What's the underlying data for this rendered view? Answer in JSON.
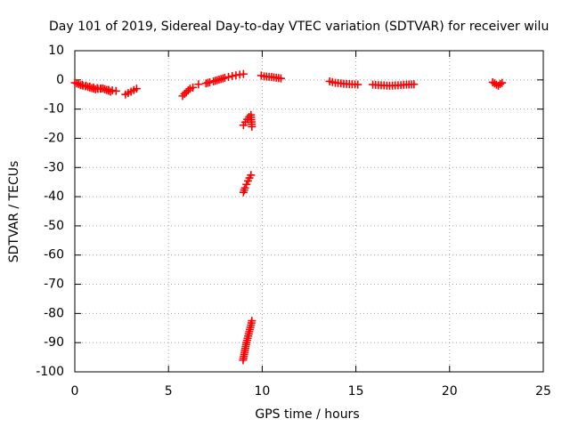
{
  "chart_data": {
    "type": "scatter",
    "title": "Day 101 of 2019, Sidereal Day-to-day VTEC variation (SDTVAR) for receiver wilu",
    "xlabel": "GPS time / hours",
    "ylabel": "SDTVAR / TECUs",
    "xlim": [
      0,
      25
    ],
    "ylim": [
      -100,
      10
    ],
    "x_ticks": [
      0,
      5,
      10,
      15,
      20,
      25
    ],
    "y_ticks": [
      10,
      0,
      -10,
      -20,
      -30,
      -40,
      -50,
      -60,
      -70,
      -80,
      -90,
      -100
    ],
    "grid": true,
    "marker": "+",
    "marker_color": "#ff0000",
    "segments": [
      {
        "x": [
          0.0,
          0.2,
          0.4,
          0.6,
          0.8,
          1.0,
          1.2,
          1.4,
          1.6,
          1.8,
          2.0,
          2.2
        ],
        "y": [
          -1.0,
          -1.4,
          -1.7,
          -2.0,
          -2.3,
          -2.6,
          -2.8,
          -3.0,
          -3.2,
          -3.4,
          -3.6,
          -3.8
        ]
      },
      {
        "x": [
          0.3,
          0.7,
          1.1,
          1.5,
          1.9
        ],
        "y": [
          -1.8,
          -2.4,
          -3.2,
          -2.9,
          -4.0
        ]
      },
      {
        "x": [
          2.7,
          2.85,
          3.0,
          3.15,
          3.3
        ],
        "y": [
          -5.0,
          -4.5,
          -4.0,
          -3.5,
          -3.0
        ]
      },
      {
        "x": [
          5.75,
          5.85,
          5.95,
          6.05,
          6.15,
          6.3
        ],
        "y": [
          -5.5,
          -4.8,
          -4.2,
          -3.6,
          -3.0,
          -2.6
        ]
      },
      {
        "x": [
          6.6
        ],
        "y": [
          -1.5
        ]
      },
      {
        "x": [
          7.0,
          7.2,
          7.4,
          7.6,
          7.8,
          8.0,
          8.2,
          8.4,
          8.6,
          8.8,
          9.0
        ],
        "y": [
          -1.2,
          -0.8,
          -0.5,
          -0.1,
          0.3,
          0.7,
          1.0,
          1.3,
          1.6,
          1.8,
          2.0
        ]
      },
      {
        "x": [
          9.95,
          10.1,
          10.5,
          11.0
        ],
        "y": [
          1.5,
          1.2,
          1.0,
          0.5
        ]
      },
      {
        "x": [
          9.0,
          9.1,
          9.2,
          9.3,
          9.4,
          9.45
        ],
        "y": [
          -15.5,
          -14.5,
          -13.5,
          -12.7,
          -12.0,
          -16.0
        ]
      },
      {
        "x": [
          9.0,
          9.08,
          9.16,
          9.24,
          9.32,
          9.4
        ],
        "y": [
          -38.5,
          -37.0,
          -35.8,
          -34.6,
          -33.6,
          -32.6
        ]
      },
      {
        "x": [
          8.98,
          9.04,
          9.1,
          9.16,
          9.22,
          9.28,
          9.34,
          9.4,
          9.45
        ],
        "y": [
          -96.0,
          -94.0,
          -92.0,
          -90.0,
          -88.5,
          -87.0,
          -85.5,
          -84.0,
          -82.5
        ]
      },
      {
        "x": [
          13.6,
          13.9,
          14.2,
          14.5,
          14.8,
          15.1
        ],
        "y": [
          -0.5,
          -1.0,
          -1.2,
          -1.4,
          -1.5,
          -1.6
        ]
      },
      {
        "x": [
          15.9,
          16.2,
          16.5,
          16.8,
          17.1,
          17.4,
          17.7,
          18.1
        ],
        "y": [
          -1.6,
          -1.8,
          -1.9,
          -2.0,
          -1.9,
          -1.8,
          -1.6,
          -1.5
        ]
      },
      {
        "x": [
          22.3,
          22.4,
          22.5,
          22.6,
          22.7,
          22.8
        ],
        "y": [
          -0.8,
          -1.2,
          -1.6,
          -2.0,
          -1.4,
          -1.0
        ]
      }
    ]
  }
}
